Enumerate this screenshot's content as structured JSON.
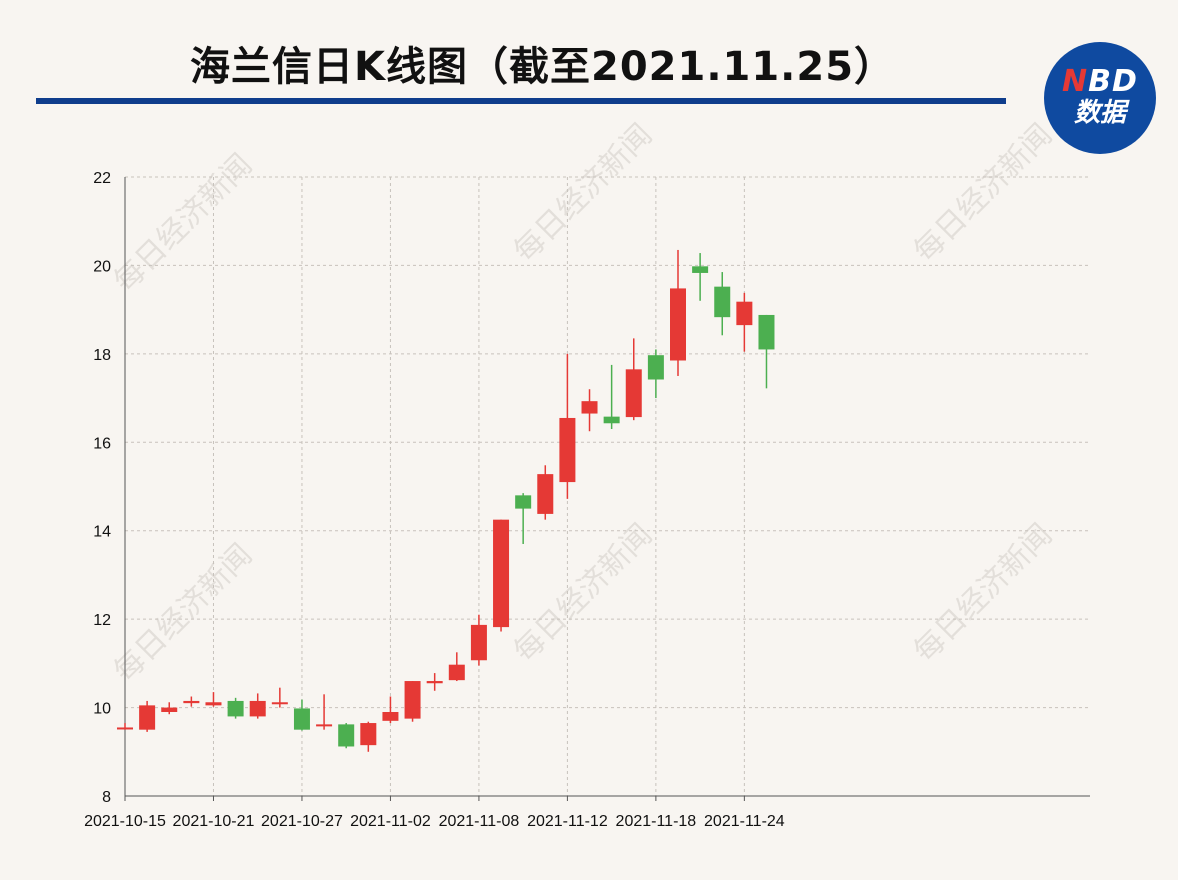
{
  "title": "海兰信日K线图（截至2021.11.25）",
  "logo": {
    "line1_n": "N",
    "line1_rest": "BD",
    "line2": "数据"
  },
  "watermark": "每日经济新闻",
  "colors": {
    "up": "#e53935",
    "down": "#4caf50",
    "rule": "#0f3d8c",
    "logo_bg": "#0f4aa0"
  },
  "chart_data": {
    "type": "candlestick",
    "ylim": [
      8,
      22
    ],
    "yticks": [
      8,
      10,
      12,
      14,
      16,
      18,
      20,
      22
    ],
    "xticks": [
      "2021-10-15",
      "2021-10-21",
      "2021-10-27",
      "2021-11-02",
      "2021-11-08",
      "2021-11-12",
      "2021-11-18",
      "2021-11-24"
    ],
    "grid": true,
    "candles": [
      {
        "date": "2021-10-15",
        "open": 9.52,
        "close": 9.55,
        "high": 9.65,
        "low": 9.5
      },
      {
        "date": "2021-10-18",
        "open": 9.5,
        "close": 10.05,
        "high": 10.15,
        "low": 9.45
      },
      {
        "date": "2021-10-19",
        "open": 9.9,
        "close": 10.0,
        "high": 10.12,
        "low": 9.85
      },
      {
        "date": "2021-10-20",
        "open": 10.1,
        "close": 10.15,
        "high": 10.25,
        "low": 10.02
      },
      {
        "date": "2021-10-21",
        "open": 10.05,
        "close": 10.12,
        "high": 10.35,
        "low": 10.02
      },
      {
        "date": "2021-10-22",
        "open": 10.15,
        "close": 9.8,
        "high": 10.22,
        "low": 9.75
      },
      {
        "date": "2021-10-25",
        "open": 9.8,
        "close": 10.15,
        "high": 10.32,
        "low": 9.75
      },
      {
        "date": "2021-10-26",
        "open": 10.1,
        "close": 10.12,
        "high": 10.45,
        "low": 10.0
      },
      {
        "date": "2021-10-27",
        "open": 9.98,
        "close": 9.5,
        "high": 10.18,
        "low": 9.48
      },
      {
        "date": "2021-10-28",
        "open": 9.6,
        "close": 9.62,
        "high": 10.3,
        "low": 9.5
      },
      {
        "date": "2021-10-29",
        "open": 9.62,
        "close": 9.12,
        "high": 9.65,
        "low": 9.08
      },
      {
        "date": "2021-11-01",
        "open": 9.15,
        "close": 9.65,
        "high": 9.68,
        "low": 9.0
      },
      {
        "date": "2021-11-02",
        "open": 9.7,
        "close": 9.9,
        "high": 10.25,
        "low": 9.65
      },
      {
        "date": "2021-11-03",
        "open": 9.75,
        "close": 10.6,
        "high": 10.6,
        "low": 9.68
      },
      {
        "date": "2021-11-04",
        "open": 10.55,
        "close": 10.6,
        "high": 10.78,
        "low": 10.38
      },
      {
        "date": "2021-11-05",
        "open": 10.62,
        "close": 10.97,
        "high": 11.25,
        "low": 10.6
      },
      {
        "date": "2021-11-08",
        "open": 11.07,
        "close": 11.87,
        "high": 12.1,
        "low": 10.95
      },
      {
        "date": "2021-11-09",
        "open": 11.82,
        "close": 14.25,
        "high": 14.25,
        "low": 11.72
      },
      {
        "date": "2021-11-10",
        "open": 14.8,
        "close": 14.5,
        "high": 14.85,
        "low": 13.7
      },
      {
        "date": "2021-11-11",
        "open": 14.38,
        "close": 15.28,
        "high": 15.48,
        "low": 14.25
      },
      {
        "date": "2021-11-12",
        "open": 15.1,
        "close": 16.55,
        "high": 18.0,
        "low": 14.72
      },
      {
        "date": "2021-11-15",
        "open": 16.65,
        "close": 16.93,
        "high": 17.2,
        "low": 16.25
      },
      {
        "date": "2021-11-16",
        "open": 16.58,
        "close": 16.43,
        "high": 17.75,
        "low": 16.3
      },
      {
        "date": "2021-11-17",
        "open": 16.57,
        "close": 17.65,
        "high": 18.35,
        "low": 16.5
      },
      {
        "date": "2021-11-18",
        "open": 17.97,
        "close": 17.42,
        "high": 18.1,
        "low": 17.0
      },
      {
        "date": "2021-11-19",
        "open": 17.85,
        "close": 19.48,
        "high": 20.35,
        "low": 17.5
      },
      {
        "date": "2021-11-22",
        "open": 19.98,
        "close": 19.83,
        "high": 20.28,
        "low": 19.2
      },
      {
        "date": "2021-11-23",
        "open": 19.52,
        "close": 18.83,
        "high": 19.85,
        "low": 18.42
      },
      {
        "date": "2021-11-24",
        "open": 18.65,
        "close": 19.18,
        "high": 19.38,
        "low": 18.05
      },
      {
        "date": "2021-11-25",
        "open": 18.88,
        "close": 18.1,
        "high": 18.88,
        "low": 17.22
      }
    ]
  }
}
